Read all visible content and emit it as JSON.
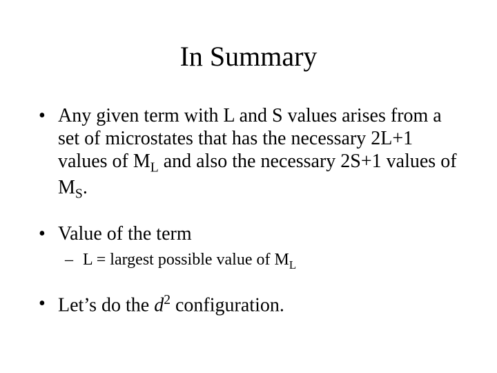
{
  "title": "In Summary",
  "bullets": {
    "b1": {
      "pre": "Any given term with L and S values arises from a set of microstates that has the necessary 2L+1 values of M",
      "sub1": "L",
      "mid": " and also the necessary 2S+1 values of M",
      "sub2": "S",
      "post": "."
    },
    "b2": {
      "text": "Value of the term",
      "sub": {
        "pre": "L = largest possible value of M",
        "subscript": "L"
      }
    },
    "b3": {
      "pre": "Let’s do the ",
      "italic": "d",
      "sup": "2",
      "post": " configuration."
    }
  },
  "colors": {
    "background": "#ffffff",
    "text": "#000000"
  },
  "fonts": {
    "family": "Times New Roman",
    "title_size_pt": 40,
    "body_size_pt": 28,
    "sub_size_pt": 24
  }
}
